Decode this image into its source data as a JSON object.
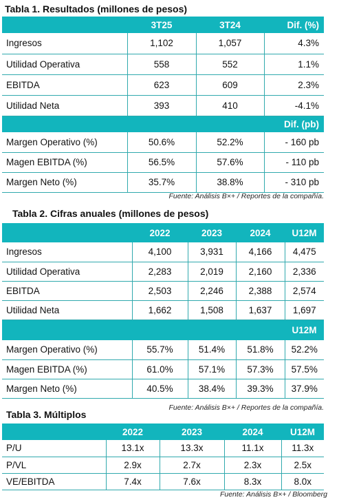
{
  "table1": {
    "title": "Tabla 1. Resultados (millones de pesos)",
    "headers": [
      "",
      "3T25",
      "3T24",
      "Dif. (%)"
    ],
    "rows": [
      [
        "Ingresos",
        "1,102",
        "1,057",
        "4.3%"
      ],
      [
        "Utilidad Operativa",
        "558",
        "552",
        "1.1%"
      ],
      [
        "EBITDA",
        "623",
        "609",
        "2.3%"
      ],
      [
        "Utilidad Neta",
        "393",
        "410",
        "-4.1%"
      ]
    ],
    "subheader": "Dif. (pb)",
    "margin_rows": [
      [
        "Margen Operativo (%)",
        "50.6%",
        "52.2%",
        "- 160 pb"
      ],
      [
        "Magen EBITDA (%)",
        "56.5%",
        "57.6%",
        "- 110 pb"
      ],
      [
        "Margen Neto (%)",
        "35.7%",
        "38.8%",
        "- 310 pb"
      ]
    ],
    "source": "Fuente: Análisis B×+ / Reportes de la compañía."
  },
  "table2": {
    "title": "Tabla 2. Cifras anuales (millones de pesos)",
    "headers": [
      "",
      "2022",
      "2023",
      "2024",
      "U12M"
    ],
    "rows": [
      [
        "Ingresos",
        "4,100",
        "3,931",
        "4,166",
        "4,475"
      ],
      [
        "Utilidad Operativa",
        "2,283",
        "2,019",
        "2,160",
        "2,336"
      ],
      [
        "EBITDA",
        "2,503",
        "2,246",
        "2,388",
        "2,574"
      ],
      [
        "Utilidad Neta",
        "1,662",
        "1,508",
        "1,637",
        "1,697"
      ]
    ],
    "subheader": "U12M",
    "margin_rows": [
      [
        "Margen Operativo (%)",
        "55.7%",
        "51.4%",
        "51.8%",
        "52.2%"
      ],
      [
        "Magen EBITDA (%)",
        "61.0%",
        "57.1%",
        "57.3%",
        "57.5%"
      ],
      [
        "Margen Neto (%)",
        "40.5%",
        "38.4%",
        "39.3%",
        "37.9%"
      ]
    ],
    "source": "Fuente: Análisis B×+ / Reportes de la compañía."
  },
  "table3": {
    "title": "Tabla 3. Múltiplos",
    "headers": [
      "",
      "2022",
      "2023",
      "2024",
      "U12M"
    ],
    "rows": [
      [
        "P/U",
        "13.1x",
        "13.3x",
        "11.1x",
        "11.3x"
      ],
      [
        "P/VL",
        "2.9x",
        "2.7x",
        "2.3x",
        "2.5x"
      ],
      [
        "VE/EBITDA",
        "7.4x",
        "7.6x",
        "8.3x",
        "8.0x"
      ]
    ],
    "source": "Fuente: Análisis B×+ / Bloomberg"
  }
}
